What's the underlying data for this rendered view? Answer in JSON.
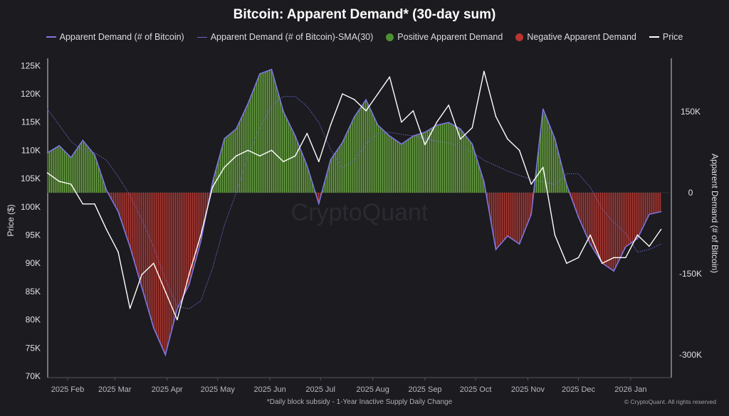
{
  "chart_data": {
    "type": "line",
    "title": "Bitcoin: Apparent Demand* (30-day sum)",
    "ylabel_left": "Price ($)",
    "ylabel_right": "Apparent Demand (# of Bitcoin)",
    "footnote": "*Daily block subsidy - 1-Year Inactive Supply Daily Change",
    "copyright": "© CryptoQuant. All rights reserved",
    "watermark": "CryptoQuant",
    "legend": [
      {
        "label": "Apparent Demand (# of Bitcoin)",
        "color": "#7d76e0",
        "kind": "line"
      },
      {
        "label": "Apparent Demand (# of Bitcoin)-SMA(30)",
        "color": "#6a68c8",
        "kind": "dotted"
      },
      {
        "label": "Positive Apparent Demand",
        "color": "#4f8f33",
        "kind": "dot"
      },
      {
        "label": "Negative Apparent Demand",
        "color": "#b8342e",
        "kind": "dot"
      },
      {
        "label": "Price",
        "color": "#ffffff",
        "kind": "line"
      }
    ],
    "legend_position": "top",
    "grid": false,
    "x_tick_labels": [
      "2025 Feb",
      "2025 Mar",
      "2025 Apr",
      "2025 May",
      "2025 Jun",
      "2025 Jul",
      "2025 Aug",
      "2025 Sep",
      "2025 Oct",
      "2025 Nov",
      "2025 Dec",
      "2026 Jan"
    ],
    "y_left_tick_labels": [
      "70K",
      "75K",
      "80K",
      "85K",
      "90K",
      "95K",
      "100K",
      "105K",
      "110K",
      "115K",
      "120K",
      "125K"
    ],
    "y_left_range": [
      70000,
      125000
    ],
    "y_right_tick_labels": [
      "150K",
      "0",
      "-150K",
      "-300K"
    ],
    "y_right_ticks": [
      150000,
      0,
      -150000,
      -300000
    ],
    "x": [
      "2025-01-20",
      "2025-01-27",
      "2025-02-03",
      "2025-02-10",
      "2025-02-17",
      "2025-02-24",
      "2025-03-03",
      "2025-03-10",
      "2025-03-17",
      "2025-03-24",
      "2025-03-31",
      "2025-04-07",
      "2025-04-14",
      "2025-04-21",
      "2025-04-28",
      "2025-05-05",
      "2025-05-12",
      "2025-05-19",
      "2025-05-26",
      "2025-06-02",
      "2025-06-09",
      "2025-06-16",
      "2025-06-23",
      "2025-06-30",
      "2025-07-07",
      "2025-07-14",
      "2025-07-21",
      "2025-07-28",
      "2025-08-04",
      "2025-08-11",
      "2025-08-18",
      "2025-08-25",
      "2025-09-01",
      "2025-09-08",
      "2025-09-15",
      "2025-09-22",
      "2025-09-29",
      "2025-10-06",
      "2025-10-13",
      "2025-10-20",
      "2025-10-27",
      "2025-11-03",
      "2025-11-10",
      "2025-11-17",
      "2025-11-24",
      "2025-12-01",
      "2025-12-08",
      "2025-12-15",
      "2025-12-22",
      "2025-12-29",
      "2026-01-05",
      "2026-01-12",
      "2026-01-19"
    ],
    "series": [
      {
        "name": "Apparent Demand (# of Bitcoin)",
        "axis": "right",
        "values": [
          74000,
          87000,
          65000,
          97000,
          70000,
          5000,
          -35000,
          -100000,
          -175000,
          -250000,
          -300000,
          -215000,
          -170000,
          -90000,
          20000,
          100000,
          118000,
          165000,
          220000,
          228000,
          150000,
          105000,
          50000,
          -20000,
          61000,
          93000,
          140000,
          172000,
          125000,
          105000,
          90000,
          105000,
          112000,
          125000,
          130000,
          118000,
          90000,
          20000,
          -105000,
          -80000,
          -95000,
          -40000,
          155000,
          100000,
          15000,
          -45000,
          -95000,
          -130000,
          -145000,
          -100000,
          -85000,
          -40000,
          -35000
        ]
      },
      {
        "name": "Apparent Demand (# of Bitcoin)-SMA(30)",
        "axis": "right",
        "values": [
          155000,
          125000,
          95000,
          78000,
          74000,
          60000,
          30000,
          -5000,
          -50000,
          -100000,
          -160000,
          -210000,
          -215000,
          -200000,
          -140000,
          -60000,
          0,
          70000,
          120000,
          160000,
          178000,
          178000,
          160000,
          130000,
          80000,
          45000,
          60000,
          90000,
          110000,
          112000,
          108000,
          105000,
          100000,
          95000,
          92000,
          85000,
          75000,
          60000,
          50000,
          40000,
          32000,
          25000,
          20000,
          15000,
          35000,
          35000,
          10000,
          -30000,
          -55000,
          -75000,
          -110000,
          -105000,
          -95000
        ]
      },
      {
        "name": "Price",
        "axis": "left",
        "values": [
          106000,
          104500,
          104000,
          100500,
          100500,
          96000,
          92000,
          82000,
          88000,
          90000,
          85000,
          80000,
          88000,
          95000,
          103500,
          107000,
          109000,
          110000,
          109000,
          110000,
          108000,
          109000,
          113000,
          108000,
          114500,
          120000,
          119000,
          117000,
          120000,
          123000,
          115000,
          117000,
          111000,
          115000,
          118000,
          112000,
          114000,
          124000,
          116000,
          112000,
          110000,
          104000,
          107000,
          95000,
          90000,
          91000,
          95000,
          90000,
          91000,
          91000,
          95000,
          93000,
          96000
        ]
      }
    ]
  }
}
